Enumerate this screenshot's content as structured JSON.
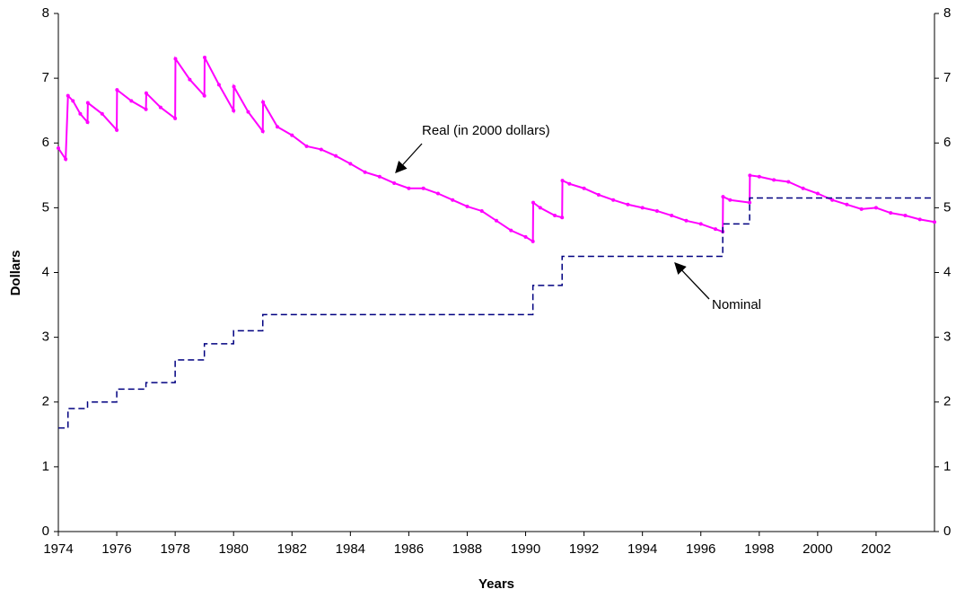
{
  "chart_data": {
    "type": "line",
    "x_label": "Years",
    "y_label": "Dollars",
    "xlim": [
      1974,
      2004
    ],
    "xticks": [
      1974,
      1976,
      1978,
      1980,
      1982,
      1984,
      1986,
      1988,
      1990,
      1992,
      1994,
      1996,
      1998,
      2000,
      2002
    ],
    "ylim": [
      0,
      8
    ],
    "yticks": [
      0,
      1,
      2,
      3,
      4,
      5,
      6,
      7,
      8
    ],
    "y2lim": [
      0,
      8
    ],
    "y2ticks": [
      0,
      1,
      2,
      3,
      4,
      5,
      6,
      7,
      8
    ],
    "grid": false,
    "annotations": [
      "Real (in 2000 dollars)",
      "Nominal"
    ],
    "series": [
      {
        "name": "Real (in 2000 dollars)",
        "color": "#ff00ff",
        "style": "solid",
        "markers": true,
        "x": [
          1974,
          1974.25,
          1974.33,
          1974.5,
          1974.75,
          1975,
          1975.01,
          1975.5,
          1976,
          1976.01,
          1976.5,
          1977,
          1977.01,
          1977.5,
          1978,
          1978.01,
          1978.5,
          1979,
          1979.01,
          1979.5,
          1980,
          1980.01,
          1980.5,
          1981,
          1981.01,
          1981.5,
          1982,
          1982.5,
          1983,
          1983.5,
          1984,
          1984.5,
          1985,
          1985.5,
          1986,
          1986.5,
          1987,
          1987.5,
          1988,
          1988.5,
          1989,
          1989.5,
          1990,
          1990.25,
          1990.26,
          1990.5,
          1991,
          1991.25,
          1991.26,
          1991.5,
          1992,
          1992.5,
          1993,
          1993.5,
          1994,
          1994.5,
          1995,
          1995.5,
          1996,
          1996.5,
          1996.75,
          1996.76,
          1997,
          1997.67,
          1997.68,
          1998,
          1998.5,
          1999,
          1999.5,
          2000,
          2000.5,
          2001,
          2001.5,
          2002,
          2002.5,
          2003,
          2003.5,
          2004
        ],
        "values": [
          5.92,
          5.75,
          6.73,
          6.65,
          6.45,
          6.32,
          6.62,
          6.45,
          6.2,
          6.82,
          6.65,
          6.52,
          6.77,
          6.55,
          6.38,
          7.3,
          6.98,
          6.73,
          7.32,
          6.9,
          6.5,
          6.87,
          6.48,
          6.18,
          6.63,
          6.25,
          6.12,
          5.95,
          5.9,
          5.8,
          5.68,
          5.55,
          5.48,
          5.38,
          5.3,
          5.3,
          5.22,
          5.12,
          5.02,
          4.95,
          4.8,
          4.65,
          4.55,
          4.48,
          5.08,
          5.0,
          4.88,
          4.85,
          5.42,
          5.37,
          5.3,
          5.2,
          5.12,
          5.05,
          5.0,
          4.95,
          4.88,
          4.8,
          4.75,
          4.67,
          4.63,
          5.17,
          5.12,
          5.08,
          5.5,
          5.48,
          5.43,
          5.4,
          5.3,
          5.22,
          5.12,
          5.05,
          4.98,
          5.0,
          4.92,
          4.88,
          4.82,
          4.78
        ]
      },
      {
        "name": "Nominal",
        "color": "#000080",
        "style": "dashed",
        "markers": false,
        "x": [
          1974,
          1974.33,
          1974.33,
          1975,
          1975,
          1976,
          1976,
          1977,
          1977,
          1978,
          1978,
          1979,
          1979,
          1980,
          1980,
          1981,
          1981,
          1990.25,
          1990.25,
          1991.25,
          1991.25,
          1996.75,
          1996.75,
          1997.67,
          1997.67,
          2004
        ],
        "values": [
          1.6,
          1.6,
          1.9,
          1.9,
          2.0,
          2.0,
          2.2,
          2.2,
          2.3,
          2.3,
          2.65,
          2.65,
          2.9,
          2.9,
          3.1,
          3.1,
          3.35,
          3.35,
          3.8,
          3.8,
          4.25,
          4.25,
          4.75,
          4.75,
          5.15,
          5.15
        ]
      }
    ]
  }
}
